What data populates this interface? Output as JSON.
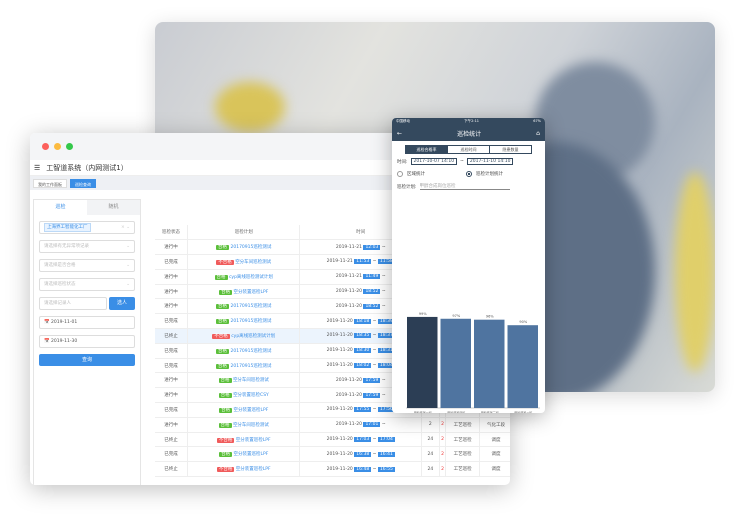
{
  "desktop": {
    "title": "工智道系统（内网测试1）",
    "tabs": [
      {
        "label": "我的工作面板"
      },
      {
        "label": "巡检查询"
      }
    ],
    "sidebar": {
      "tabs": [
        "巡检",
        "随机"
      ],
      "factory_chip": "上海界工智能化工厂",
      "selects": [
        "请选择有无异常项记录",
        "请选择是否合格",
        "请选择巡检状态"
      ],
      "recorder_placeholder": "请选择记录人",
      "select_button": "选人",
      "start_date": "2019-11-01",
      "end_date": "2019-11-30",
      "query_button": "查询"
    },
    "table": {
      "headers": [
        "巡检状态",
        "巡检计划",
        "时间",
        "填写",
        "",
        "",
        "",
        ""
      ],
      "rows": [
        {
          "status": "进行中",
          "result": "合格",
          "ok": true,
          "plan": "20170915巡检测试",
          "date": "2019-11-21",
          "start": "12:03",
          "end": "",
          "c4": "",
          "c5": "",
          "c6": "",
          "c7": ""
        },
        {
          "status": "已完成",
          "result": "不合格",
          "ok": false,
          "plan": "空分车间巡检测试",
          "date": "2019-11-21",
          "start": "11:53",
          "end": "11:58",
          "c4": "",
          "c5": "",
          "c6": "",
          "c7": ""
        },
        {
          "status": "进行中",
          "result": "合格",
          "ok": true,
          "plan": "cyp离线巡检测试计划",
          "date": "2019-11-21",
          "start": "11:49",
          "end": "",
          "c4": "",
          "c5": "",
          "c6": "",
          "c7": ""
        },
        {
          "status": "进行中",
          "result": "合格",
          "ok": true,
          "plan": "空分装置巡检LPF",
          "date": "2019-11-20",
          "start": "18:52",
          "end": "",
          "c4": "",
          "c5": "",
          "c6": "",
          "c7": ""
        },
        {
          "status": "进行中",
          "result": "合格",
          "ok": true,
          "plan": "20170915巡检测试",
          "date": "2019-11-20",
          "start": "18:52",
          "end": "",
          "c4": "",
          "c5": "",
          "c6": "",
          "c7": ""
        },
        {
          "status": "已完成",
          "result": "合格",
          "ok": true,
          "plan": "20170915巡检测试",
          "date": "2019-11-20",
          "start": "18:18",
          "end": "18:39",
          "c4": "",
          "c5": "",
          "c6": "",
          "c7": ""
        },
        {
          "status": "已终止",
          "result": "不合格",
          "ok": false,
          "plan": "cyp离线巡检测试计划",
          "date": "2019-11-20",
          "start": "18:35",
          "end": "18:37",
          "c4": "",
          "c5": "",
          "c6": "",
          "c7": ""
        },
        {
          "status": "已完成",
          "result": "合格",
          "ok": true,
          "plan": "20170915巡检测试",
          "date": "2019-11-20",
          "start": "18:30",
          "end": "18:31",
          "c4": "",
          "c5": "",
          "c6": "",
          "c7": ""
        },
        {
          "status": "已完成",
          "result": "合格",
          "ok": true,
          "plan": "20170915巡检测试",
          "date": "2019-11-20",
          "start": "18:02",
          "end": "18:04",
          "c4": "",
          "c5": "",
          "c6": "",
          "c7": ""
        },
        {
          "status": "进行中",
          "result": "合格",
          "ok": true,
          "plan": "空分车间巡检测试",
          "date": "2019-11-20",
          "start": "17:59",
          "end": "",
          "c4": "",
          "c5": "",
          "c6": "",
          "c7": ""
        },
        {
          "status": "进行中",
          "result": "合格",
          "ok": true,
          "plan": "空分装置巡检CSY",
          "date": "2019-11-20",
          "start": "17:59",
          "end": "",
          "c4": "",
          "c5": "",
          "c6": "",
          "c7": ""
        },
        {
          "status": "已完成",
          "result": "合格",
          "ok": true,
          "plan": "空分装置巡检LPF",
          "date": "2019-11-20",
          "start": "17:55",
          "end": "17:56",
          "c4": "24",
          "c5": "2",
          "c6": "",
          "c7": ""
        },
        {
          "status": "进行中",
          "result": "合格",
          "ok": true,
          "plan": "空分车间巡检测试",
          "date": "2019-11-20",
          "start": "17:01",
          "end": "",
          "c4": "2",
          "c5": "2",
          "c6": "工艺巡检",
          "c7": "气化工段"
        },
        {
          "status": "已终止",
          "result": "不合格",
          "ok": false,
          "plan": "空分装置巡检LPF",
          "date": "2019-11-20",
          "start": "17:03",
          "end": "17:04",
          "c4": "24",
          "c5": "2",
          "c6": "工艺巡检",
          "c7": "调度"
        },
        {
          "status": "已完成",
          "result": "合格",
          "ok": true,
          "plan": "空分装置巡检LPF",
          "date": "2019-11-20",
          "start": "16:38",
          "end": "16:41",
          "c4": "24",
          "c5": "2",
          "c6": "工艺巡检",
          "c7": "调度"
        },
        {
          "status": "已终止",
          "result": "不合格",
          "ok": false,
          "plan": "空分装置巡检LPF",
          "date": "2019-11-20",
          "start": "16:48",
          "end": "16:55",
          "c4": "24",
          "c5": "2",
          "c6": "工艺巡检",
          "c7": "调度"
        }
      ]
    }
  },
  "mobile": {
    "status_left": "中国移动",
    "status_time": "下午2:11",
    "status_battery": "67%",
    "title": "巡检统计",
    "segments": [
      "巡检合格率",
      "巡检时间",
      "隐患数量"
    ],
    "time_label": "时间:",
    "start": "2017-10-07 14:10",
    "end": "2017-11-10 14:10",
    "tilde": "~",
    "radio_area": "区域统计",
    "radio_plan": "巡检计划统计",
    "plan_label": "巡检计划:",
    "plan_value": "甲醇合成岗位巡检",
    "chart_data": {
      "type": "bar",
      "categories": [
        "甲醇装置一班",
        "甲醇装置四班",
        "甲醇装置三班",
        "甲醇装置二班"
      ],
      "values": [
        99,
        97,
        96,
        90
      ],
      "labels": [
        "99%",
        "97%",
        "96%",
        "90%"
      ],
      "colors": [
        "#2c3e55",
        "#4f74a0",
        "#4f74a0",
        "#4f74a0"
      ],
      "ylim": [
        0,
        100
      ]
    }
  }
}
